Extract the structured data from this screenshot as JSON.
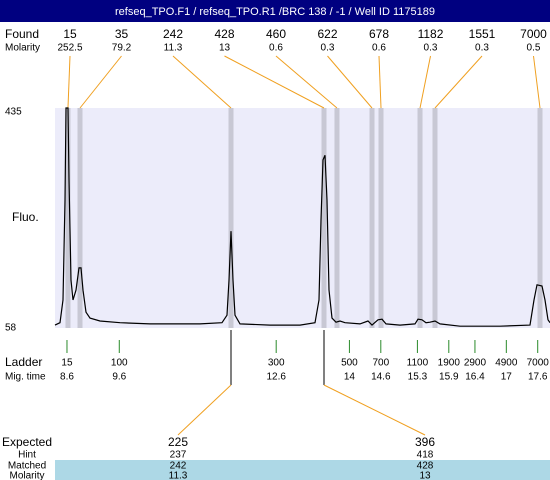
{
  "chart_data": {
    "type": "electropherogram",
    "title": "refseq_TPO.F1 / refseq_TPO.R1 /BRC 138 / -1 / Well ID 1175189",
    "found": {
      "label": "Found",
      "molarity_label": "Molarity",
      "sizes": [
        15,
        35,
        242,
        428,
        460,
        622,
        678,
        1182,
        1551,
        7000
      ],
      "molarity": [
        252.5,
        79.2,
        11.3,
        13,
        0.6,
        0.3,
        0.6,
        0.3,
        0.3,
        0.5
      ],
      "peak_times": [
        8.619,
        8.849,
        11.736,
        13.514,
        13.762,
        14.432,
        14.604,
        15.35,
        15.636,
        17.644
      ]
    },
    "y_label": "Fluo.",
    "ylim": [
      58,
      435
    ],
    "yticks": [
      58,
      435
    ],
    "xlim": [
      8.371,
      17.835
    ],
    "trace": {
      "t": [
        8.371,
        8.466,
        8.524,
        8.562,
        8.581,
        8.619,
        8.638,
        8.676,
        8.715,
        8.772,
        8.829,
        8.868,
        8.906,
        8.963,
        9.04,
        9.231,
        9.613,
        10.187,
        11.143,
        11.564,
        11.659,
        11.698,
        11.736,
        11.774,
        11.812,
        11.908,
        12.481,
        13.055,
        13.342,
        13.418,
        13.457,
        13.495,
        13.533,
        13.571,
        13.61,
        13.667,
        13.743,
        13.82,
        13.915,
        14.202,
        14.355,
        14.432,
        14.546,
        14.623,
        14.699,
        14.967,
        15.254,
        15.311,
        15.388,
        15.464,
        15.541,
        15.636,
        15.732,
        16.114,
        16.879,
        17.453,
        17.529,
        17.587,
        17.682,
        17.74,
        17.797,
        17.835
      ],
      "v": [
        63,
        67,
        106,
        277,
        435,
        435,
        312,
        140,
        106,
        123,
        161,
        161,
        123,
        85,
        75,
        70,
        67,
        65,
        65,
        67,
        80,
        140,
        224,
        140,
        80,
        65,
        63,
        63,
        67,
        106,
        243,
        346,
        354,
        277,
        123,
        75,
        68,
        70,
        67,
        65,
        70,
        63,
        72,
        73,
        65,
        63,
        65,
        73,
        72,
        67,
        68,
        70,
        65,
        61,
        61,
        63,
        106,
        132,
        130,
        106,
        72,
        67
      ]
    },
    "ladder": {
      "label": "Ladder",
      "time_label": "Mig. time",
      "sizes": [
        15,
        100,
        300,
        500,
        700,
        1100,
        1900,
        2900,
        4900,
        7000
      ],
      "mig_times": [
        8.6,
        9.6,
        12.6,
        14,
        14.6,
        15.3,
        15.9,
        16.4,
        17,
        17.6
      ]
    },
    "expected": {
      "row_labels": [
        "Expected",
        "Hint",
        "Matched",
        "Molarity"
      ],
      "expected": [
        225,
        396
      ],
      "hint": [
        237,
        418
      ],
      "matched": [
        242,
        428
      ],
      "molarity": [
        11.3,
        13
      ]
    }
  }
}
